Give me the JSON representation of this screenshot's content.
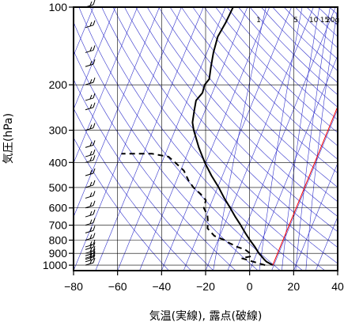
{
  "chart_data": {
    "type": "line",
    "subtype": "skew-T log-p thermodynamic diagram",
    "xlabel": "気温(実線), 露点(破線)",
    "ylabel": "気圧(hPa)",
    "xlim": [
      -80,
      40
    ],
    "ylim": [
      1050,
      100
    ],
    "y_scale": "log",
    "skew_deg_per_decade": 48,
    "x_ticks": [
      -80,
      -60,
      -40,
      -20,
      0,
      20,
      40
    ],
    "x_tick_labels": [
      "−80",
      "−60",
      "−40",
      "−20",
      "0",
      "20",
      "40"
    ],
    "y_ticks": [
      100,
      200,
      300,
      400,
      500,
      600,
      700,
      800,
      900,
      1000
    ],
    "y_tick_labels": [
      "100",
      "200",
      "300",
      "400",
      "500",
      "600",
      "700",
      "800",
      "900",
      "1000"
    ],
    "isotherm_interval": 10,
    "mixing_ratio_labels": [
      "1",
      "5",
      "10",
      "15",
      "20g"
    ],
    "mixing_ratios": [
      1,
      5,
      10,
      15,
      20
    ],
    "colors": {
      "temperature": "#000000",
      "dewpoint": "#000000",
      "isotherm_reference": "#ff0000",
      "guide_lines": "#3333cc",
      "grid": "#000000"
    },
    "series": [
      {
        "name": "temperature",
        "style": "solid",
        "points": [
          {
            "p": 1000,
            "t": 9.5
          },
          {
            "p": 970,
            "t": 6.0
          },
          {
            "p": 950,
            "t": 4.5
          },
          {
            "p": 925,
            "t": 2.8
          },
          {
            "p": 900,
            "t": 1.0
          },
          {
            "p": 850,
            "t": -2.0
          },
          {
            "p": 800,
            "t": -5.5
          },
          {
            "p": 750,
            "t": -9.0
          },
          {
            "p": 700,
            "t": -12.5
          },
          {
            "p": 650,
            "t": -16.5
          },
          {
            "p": 600,
            "t": -20.5
          },
          {
            "p": 550,
            "t": -25.0
          },
          {
            "p": 500,
            "t": -29.5
          },
          {
            "p": 450,
            "t": -35.0
          },
          {
            "p": 400,
            "t": -40.5
          },
          {
            "p": 350,
            "t": -46.0
          },
          {
            "p": 300,
            "t": -51.5
          },
          {
            "p": 280,
            "t": -53.5
          },
          {
            "p": 250,
            "t": -55.0
          },
          {
            "p": 230,
            "t": -56.0
          },
          {
            "p": 215,
            "t": -54.5
          },
          {
            "p": 200,
            "t": -55.0
          },
          {
            "p": 190,
            "t": -54.0
          },
          {
            "p": 170,
            "t": -55.5
          },
          {
            "p": 150,
            "t": -57.0
          },
          {
            "p": 130,
            "t": -58.0
          },
          {
            "p": 115,
            "t": -57.0
          },
          {
            "p": 100,
            "t": -56.5
          }
        ]
      },
      {
        "name": "dewpoint",
        "style": "dashed",
        "points": [
          {
            "p": 1000,
            "t": 6.0
          },
          {
            "p": 980,
            "t": 2.0
          },
          {
            "p": 960,
            "t": -2.0
          },
          {
            "p": 940,
            "t": -6.0
          },
          {
            "p": 925,
            "t": -2.0
          },
          {
            "p": 900,
            "t": -3.0
          },
          {
            "p": 870,
            "t": -6.0
          },
          {
            "p": 850,
            "t": -10.0
          },
          {
            "p": 820,
            "t": -14.5
          },
          {
            "p": 800,
            "t": -17.0
          },
          {
            "p": 770,
            "t": -22.5
          },
          {
            "p": 720,
            "t": -27.0
          },
          {
            "p": 680,
            "t": -28.0
          },
          {
            "p": 640,
            "t": -29.5
          },
          {
            "p": 600,
            "t": -32.5
          },
          {
            "p": 560,
            "t": -33.0
          },
          {
            "p": 530,
            "t": -36.5
          },
          {
            "p": 500,
            "t": -41.0
          },
          {
            "p": 470,
            "t": -44.5
          },
          {
            "p": 430,
            "t": -48.5
          },
          {
            "p": 400,
            "t": -54.0
          },
          {
            "p": 380,
            "t": -58.0
          },
          {
            "p": 370,
            "t": -66.0
          },
          {
            "p": 370,
            "t": -80.0
          }
        ]
      },
      {
        "name": "reference isotherm",
        "style": "solid",
        "points": [
          {
            "p": 1000,
            "t": 9.5
          },
          {
            "p": 100,
            "t": 9.5
          }
        ]
      }
    ],
    "wind_barbs": {
      "x_position": "left edge of plot",
      "levels": [
        100,
        120,
        150,
        170,
        200,
        230,
        250,
        300,
        350,
        380,
        400,
        450,
        500,
        550,
        600,
        650,
        700,
        750,
        800,
        850,
        870,
        900,
        920,
        940,
        950,
        970,
        1000
      ]
    }
  }
}
